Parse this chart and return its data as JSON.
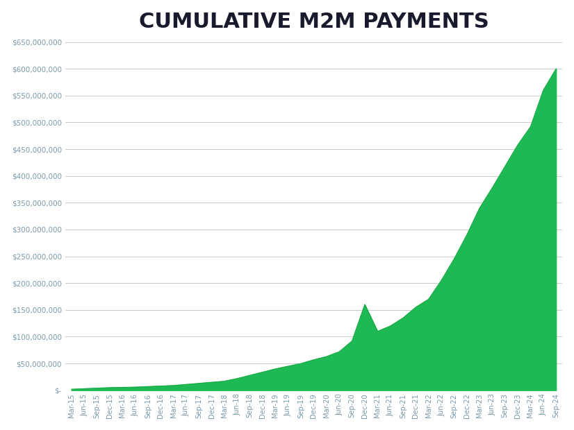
{
  "title": "CUMULATIVE M2M PAYMENTS",
  "title_fontsize": 22,
  "title_fontweight": "bold",
  "title_color": "#1a1a2e",
  "fill_color": "#1db954",
  "line_color": "#1aaa44",
  "bg_color": "#ffffff",
  "grid_color": "#cccccc",
  "axis_label_color": "#7a9aaa",
  "ylim": [
    0,
    650000000
  ],
  "yticks": [
    0,
    50000000,
    100000000,
    150000000,
    200000000,
    250000000,
    300000000,
    350000000,
    400000000,
    450000000,
    500000000,
    550000000,
    600000000,
    650000000
  ],
  "ytick_labels": [
    "$-",
    "$50,000,000",
    "$100,000,000",
    "$150,000,000",
    "$200,000,000",
    "$250,000,000",
    "$300,000,000",
    "$350,000,000",
    "$400,000,000",
    "$450,000,000",
    "$500,000,000",
    "$550,000,000",
    "$600,000,000",
    "$650,000,000"
  ],
  "xtick_labels": [
    "Mar-15",
    "Jun-15",
    "Sep-15",
    "Dec-15",
    "Mar-16",
    "Jun-16",
    "Sep-16",
    "Dec-16",
    "Mar-17",
    "Jun-17",
    "Sep-17",
    "Dec-17",
    "Mar-18",
    "Jun-18",
    "Sep-18",
    "Dec-18",
    "Mar-19",
    "Jun-19",
    "Sep-19",
    "Dec-19",
    "Mar-20",
    "Jun-20",
    "Sep-20",
    "Dec-20",
    "Mar-21",
    "Jun-21",
    "Sep-21",
    "Dec-21",
    "Mar-22",
    "Jun-22",
    "Sep-22",
    "Dec-22",
    "Mar-23",
    "Jun-23",
    "Sep-23",
    "Dec-23",
    "Mar-24",
    "Jun-24",
    "Sep-24"
  ],
  "values": [
    2000000,
    3000000,
    4000000,
    5000000,
    5500000,
    6000000,
    7000000,
    8000000,
    9000000,
    11000000,
    13000000,
    15000000,
    17000000,
    22000000,
    28000000,
    34000000,
    40000000,
    45000000,
    50000000,
    57000000,
    63000000,
    72000000,
    92000000,
    160000000,
    110000000,
    120000000,
    135000000,
    155000000,
    170000000,
    205000000,
    245000000,
    290000000,
    340000000,
    378000000,
    418000000,
    458000000,
    492000000,
    560000000,
    600000000
  ]
}
